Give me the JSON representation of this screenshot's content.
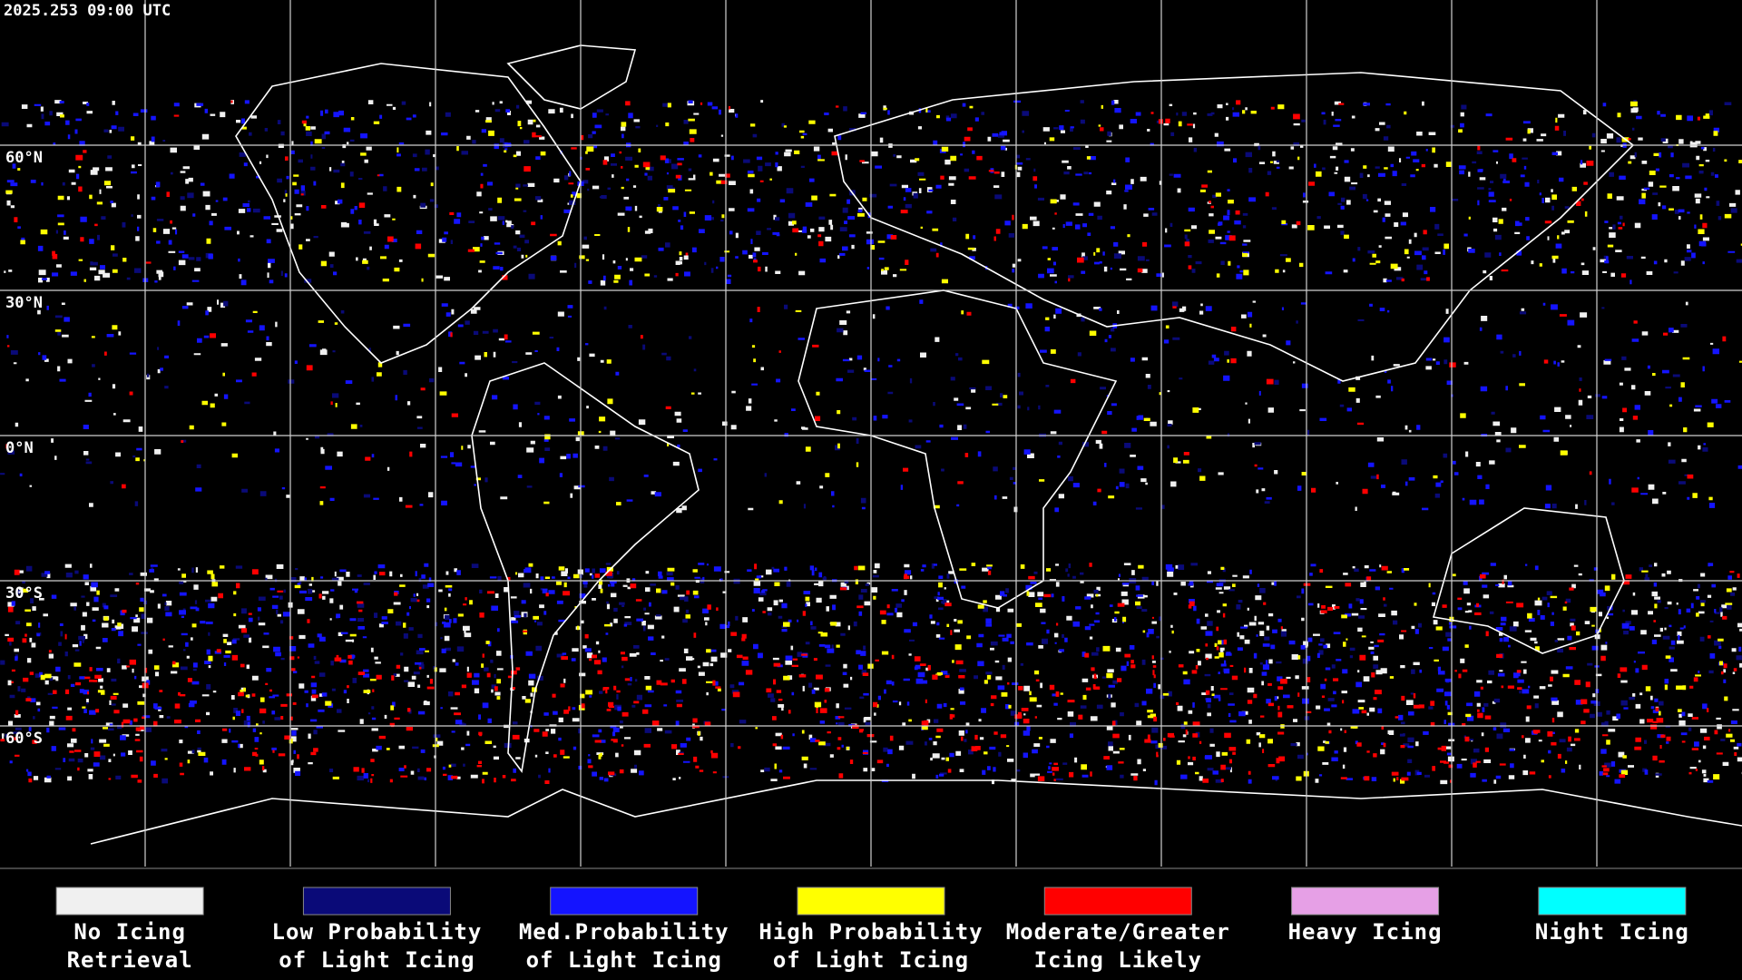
{
  "header": {
    "timestamp": "2025.253 09:00 UTC"
  },
  "map": {
    "lat_labels": [
      "60°N",
      "30°N",
      "0°N",
      "30°S",
      "60°S"
    ]
  },
  "legend": {
    "items": [
      {
        "lines": [
          "No Icing",
          "Retrieval"
        ],
        "color": "#f0f0f0"
      },
      {
        "lines": [
          "Low Probability",
          "of Light Icing"
        ],
        "color": "#0a0a78"
      },
      {
        "lines": [
          "Med.Probability",
          "of Light Icing"
        ],
        "color": "#1414ff"
      },
      {
        "lines": [
          "High Probability",
          "of Light Icing"
        ],
        "color": "#ffff00"
      },
      {
        "lines": [
          "Moderate/Greater",
          "Icing Likely"
        ],
        "color": "#ff0000"
      },
      {
        "lines": [
          "Heavy Icing"
        ],
        "color": "#e6a0e6"
      },
      {
        "lines": [
          "Night Icing"
        ],
        "color": "#00ffff"
      }
    ]
  }
}
